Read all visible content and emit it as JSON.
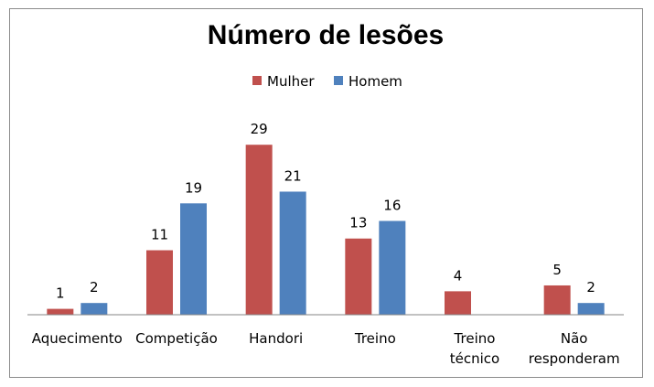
{
  "chart_data": {
    "type": "bar",
    "title": "Número de lesões",
    "categories": [
      [
        "Aquecimento"
      ],
      [
        "Competição"
      ],
      [
        "Handori"
      ],
      [
        "Treino"
      ],
      [
        "Treino",
        "técnico"
      ],
      [
        "Não",
        "responderam"
      ]
    ],
    "series": [
      {
        "name": "Mulher",
        "color": "#c0504d",
        "values": [
          1,
          11,
          29,
          13,
          4,
          5
        ]
      },
      {
        "name": "Homem",
        "color": "#4f81bd",
        "values": [
          2,
          19,
          21,
          16,
          null,
          2
        ]
      }
    ],
    "ylim": [
      0,
      32
    ],
    "grid": false,
    "legend": "top"
  }
}
